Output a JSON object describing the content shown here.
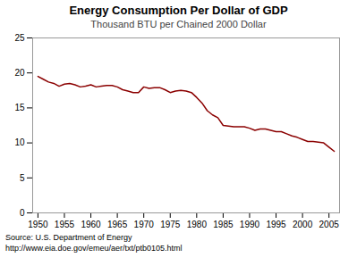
{
  "chart_data": {
    "type": "line",
    "title": "Energy Consumption Per Dollar of GDP",
    "subtitle": "Thousand BTU per Chained 2000 Dollar",
    "annotations": [
      "Source: U.S. Department of Energy",
      "http://www.eia.doe.gov/emeu/aer/txt/ptb0105.html"
    ],
    "color": "#8B0000",
    "grid": false,
    "xlim": [
      1949,
      2007
    ],
    "ylim": [
      0,
      25
    ],
    "xticks": [
      1950,
      1955,
      1960,
      1965,
      1970,
      1975,
      1980,
      1985,
      1990,
      1995,
      2000,
      2005
    ],
    "yticks": [
      0,
      5,
      10,
      15,
      20,
      25
    ],
    "x": [
      1950,
      1951,
      1952,
      1953,
      1954,
      1955,
      1956,
      1957,
      1958,
      1959,
      1960,
      1961,
      1962,
      1963,
      1964,
      1965,
      1966,
      1967,
      1968,
      1969,
      1970,
      1971,
      1972,
      1973,
      1974,
      1975,
      1976,
      1977,
      1978,
      1979,
      1980,
      1981,
      1982,
      1983,
      1984,
      1985,
      1986,
      1987,
      1988,
      1989,
      1990,
      1991,
      1992,
      1993,
      1994,
      1995,
      1996,
      1997,
      1998,
      1999,
      2000,
      2001,
      2002,
      2003,
      2004,
      2005,
      2006
    ],
    "values": [
      19.5,
      19.1,
      18.7,
      18.5,
      18.1,
      18.4,
      18.5,
      18.3,
      18.0,
      18.1,
      18.3,
      18.0,
      18.1,
      18.2,
      18.2,
      18.0,
      17.6,
      17.4,
      17.2,
      17.2,
      18.0,
      17.8,
      17.9,
      17.9,
      17.6,
      17.2,
      17.4,
      17.5,
      17.4,
      17.2,
      16.5,
      15.7,
      14.6,
      14.0,
      13.6,
      12.5,
      12.4,
      12.3,
      12.3,
      12.3,
      12.1,
      11.8,
      12.0,
      12.0,
      11.8,
      11.6,
      11.6,
      11.3,
      11.0,
      10.8,
      10.5,
      10.2,
      10.2,
      10.1,
      10.0,
      9.4,
      8.8
    ]
  }
}
